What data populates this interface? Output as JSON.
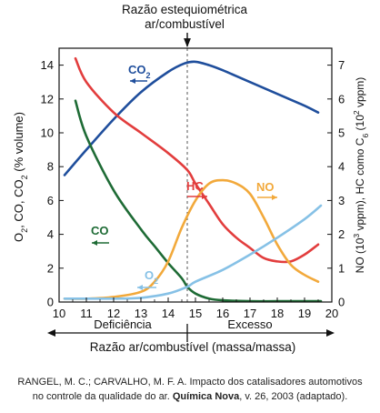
{
  "chart_data": {
    "type": "line",
    "top_label_1": "Razão estequiométrica",
    "top_label_2": "ar/combustível",
    "xlabel": "Razão ar/combustível (massa/massa)",
    "ylabel_left": "O2, CO, CO2 (% volume)",
    "ylabel_right": "NO (10³ vppm), HC como C6 (10² vppm)",
    "xlim": [
      10,
      20
    ],
    "ylim_left": [
      0,
      15
    ],
    "ylim_right": [
      0,
      7.5
    ],
    "stoich_x": 14.7,
    "x_ticks": [
      "10",
      "11",
      "12",
      "13",
      "14",
      "15",
      "16",
      "17",
      "18",
      "19",
      "20"
    ],
    "y_ticks_left": [
      "0",
      "2",
      "4",
      "6",
      "8",
      "10",
      "12",
      "14"
    ],
    "y_ticks_right": [
      "0",
      "1",
      "2",
      "3",
      "4",
      "5",
      "6",
      "7"
    ],
    "region_left": "Deficiência",
    "region_right": "Excesso",
    "series": [
      {
        "key": "co2",
        "name": "CO",
        "sub": "2",
        "axis": "left",
        "color": "#1f4e9c",
        "x": [
          10.2,
          11,
          12,
          13,
          14,
          14.6,
          15,
          15.5,
          16,
          17,
          18,
          19,
          19.5
        ],
        "y": [
          7.5,
          9.0,
          10.8,
          12.4,
          13.6,
          14.1,
          14.2,
          14.0,
          13.7,
          13.0,
          12.3,
          11.6,
          11.2
        ]
      },
      {
        "key": "co",
        "name": "CO",
        "sub": "",
        "axis": "left",
        "color": "#1e6b35",
        "x": [
          10.6,
          11,
          12,
          13,
          13.5,
          14,
          14.5,
          14.7,
          15,
          15.5,
          16,
          17,
          18,
          19,
          19.6
        ],
        "y": [
          11.9,
          9.8,
          6.6,
          4.3,
          3.3,
          2.3,
          1.4,
          0.9,
          0.5,
          0.2,
          0.1,
          0.05,
          0.05,
          0.05,
          0.05
        ]
      },
      {
        "key": "hc",
        "name": "HC",
        "sub": "",
        "axis": "right",
        "color": "#e23d3d",
        "x": [
          10.6,
          11,
          12,
          13,
          14,
          14.7,
          15,
          15.5,
          16,
          16.5,
          17,
          17.5,
          18,
          18.5,
          19,
          19.5
        ],
        "y": [
          7.2,
          6.5,
          5.6,
          5.0,
          4.4,
          3.9,
          3.5,
          2.9,
          2.3,
          1.9,
          1.6,
          1.3,
          1.2,
          1.2,
          1.4,
          1.7
        ]
      },
      {
        "key": "no",
        "name": "NO",
        "sub": "",
        "axis": "right",
        "color": "#f2a93b",
        "x": [
          10.2,
          11,
          12,
          13,
          13.5,
          14,
          14.5,
          15,
          15.5,
          16,
          16.5,
          17,
          17.5,
          18,
          18.5,
          19,
          19.5
        ],
        "y": [
          0.1,
          0.1,
          0.15,
          0.3,
          0.6,
          1.2,
          2.2,
          3.0,
          3.5,
          3.6,
          3.5,
          3.2,
          2.5,
          1.7,
          1.1,
          0.8,
          0.6
        ]
      },
      {
        "key": "o2",
        "name": "O",
        "sub": "2",
        "axis": "left",
        "color": "#86c1e6",
        "x": [
          10.2,
          11,
          12,
          13,
          14,
          14.7,
          15,
          16,
          17,
          18,
          19,
          19.6
        ],
        "y": [
          0.2,
          0.2,
          0.2,
          0.25,
          0.5,
          0.9,
          1.2,
          1.9,
          2.8,
          3.8,
          4.9,
          5.7
        ]
      }
    ]
  },
  "source": {
    "line1": "RANGEL, M. C.; CARVALHO, M. F. A. Impacto dos catalisadores automotivos",
    "line2_pre": "no controle da qualidade do ar. ",
    "line2_bold": "Química Nova",
    "line2_post": ", v. 26, 2003 (adaptado)."
  }
}
